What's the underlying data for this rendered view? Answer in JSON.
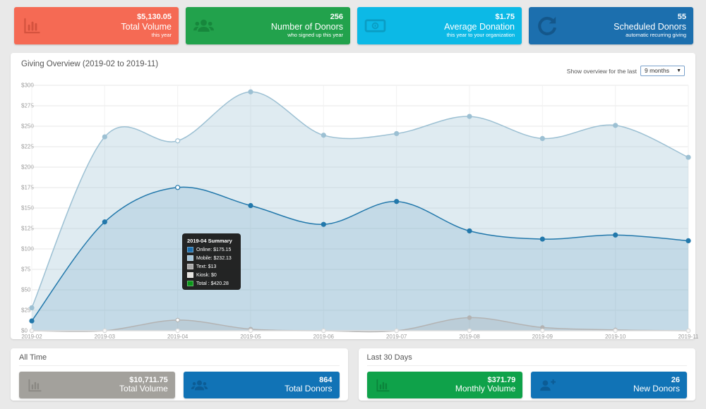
{
  "colors": {
    "page_bg": "#e9e9e9",
    "panel_bg": "#ffffff",
    "grid_h": "#e7e7e7",
    "grid_v": "#f1f1f1",
    "axis_line": "#d6d6d6",
    "tick_text": "#9b9b9b"
  },
  "top_cards": [
    {
      "icon": "chart-bar-icon",
      "value": "$5,130.05",
      "label": "Total Volume",
      "sublabel": "this year",
      "bg": "#f56a54",
      "icon_color": "#d4523e"
    },
    {
      "icon": "users-icon",
      "value": "256",
      "label": "Number of Donors",
      "sublabel": "who signed up this year",
      "bg": "#22a24c",
      "icon_color": "#17873c"
    },
    {
      "icon": "money-bill-icon",
      "value": "$1.75",
      "label": "Average Donation",
      "sublabel": "this year to your organization",
      "bg": "#0cb9e6",
      "icon_color": "#0a9dc4"
    },
    {
      "icon": "sync-icon",
      "value": "55",
      "label": "Scheduled Donors",
      "sublabel": "automatic recurring giving",
      "bg": "#1c6fae",
      "icon_color": "#14578b"
    }
  ],
  "chart_section": {
    "title": "Giving Overview (2019-02 to 2019-11)",
    "filter_label": "Show overview for the last",
    "filter_value": "9 months",
    "filter_arrow": "▼"
  },
  "chart_data": {
    "type": "area",
    "title": "Giving Overview (2019-02 to 2019-11)",
    "x": [
      "2019-02",
      "2019-03",
      "2019-04",
      "2019-05",
      "2019-06",
      "2019-07",
      "2019-08",
      "2019-09",
      "2019-10",
      "2019-11"
    ],
    "series": [
      {
        "name": "Mobile",
        "color": "#9cc0d3",
        "fill": "rgba(156,192,211,0.32)",
        "values": [
          28,
          237,
          232.13,
          292,
          239,
          241,
          262,
          235,
          251,
          212
        ]
      },
      {
        "name": "Online",
        "color": "#2278ab",
        "fill": "rgba(34,120,171,0.14)",
        "values": [
          12,
          133,
          175.15,
          153,
          130,
          158,
          122,
          112,
          117,
          110
        ]
      },
      {
        "name": "Text",
        "color": "#b3b3b3",
        "fill": "rgba(150,150,150,0.18)",
        "values": [
          0,
          0,
          13,
          2,
          0,
          0,
          16,
          4,
          1,
          0
        ]
      },
      {
        "name": "Kiosk",
        "color": "#dddddd",
        "fill": "rgba(220,220,220,0)",
        "values": [
          0,
          0,
          0,
          0,
          0,
          0,
          0,
          0,
          0,
          0
        ]
      }
    ],
    "ylim": [
      0,
      300
    ],
    "y_step": 25,
    "y_prefix": "$",
    "grid": true,
    "legend_position": "none",
    "hovered_index": 2
  },
  "tooltip": {
    "title": "2019-04 Summary",
    "rows": [
      {
        "swatch": "#1b6fae",
        "text": "Online: $175.15"
      },
      {
        "swatch": "#a6c6da",
        "text": "Mobile: $232.13"
      },
      {
        "swatch": "#a8a8a8",
        "text": "Text: $13"
      },
      {
        "swatch": "#e6e4e0",
        "text": "Kiosk: $0"
      },
      {
        "swatch": "#0a9618",
        "text": "Total : $420.28"
      }
    ]
  },
  "bottom_sections": [
    {
      "title": "All Time",
      "cards": [
        {
          "icon": "chart-bar-icon",
          "value": "$10,711.75",
          "label": "Total Volume",
          "bg": "#a3a19c",
          "icon_color": "#8a8883"
        },
        {
          "icon": "users-icon",
          "value": "864",
          "label": "Total Donors",
          "bg": "#1173b6",
          "icon_color": "#0c5c95"
        }
      ]
    },
    {
      "title": "Last 30 Days",
      "cards": [
        {
          "icon": "chart-bar-icon",
          "value": "$371.79",
          "label": "Monthly Volume",
          "bg": "#0fa24a",
          "icon_color": "#0b843b"
        },
        {
          "icon": "user-plus-icon",
          "value": "26",
          "label": "New Donors",
          "bg": "#1173b6",
          "icon_color": "#0c5c95"
        }
      ]
    }
  ]
}
